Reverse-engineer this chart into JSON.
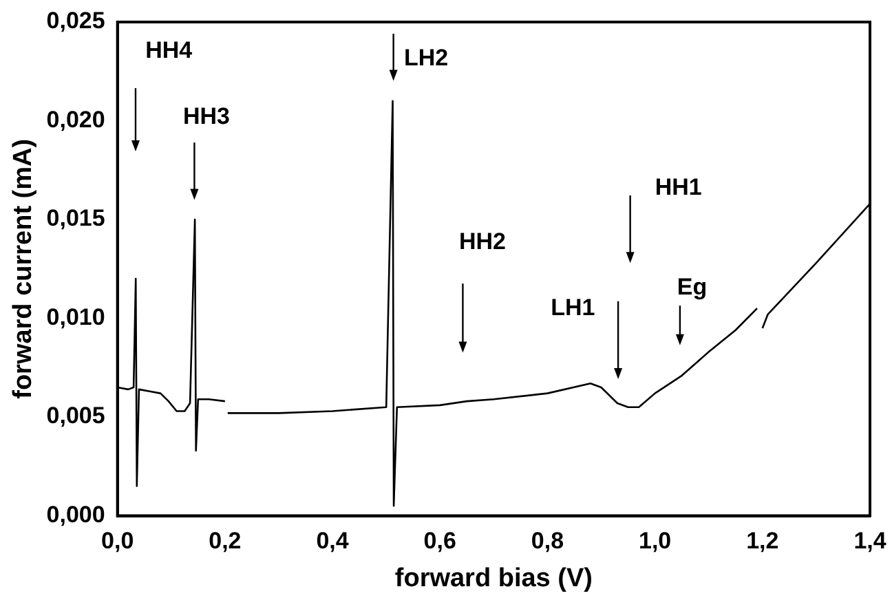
{
  "chart_data": {
    "type": "line",
    "xlabel": "forward bias (V)",
    "ylabel": "forward current (mA)",
    "series": [
      {
        "color": "#000000",
        "x": [
          0,
          0.02,
          0.03,
          0.034,
          0.036,
          0.04,
          0.06,
          0.08,
          0.095,
          0.11,
          0.125,
          0.135,
          0.144,
          0.146,
          0.15,
          0.17,
          0.2,
          0.201,
          0.205,
          0.3,
          0.4,
          0.5,
          0.512,
          0.514,
          0.52,
          0.6,
          0.65,
          0.7,
          0.8,
          0.88,
          0.9,
          0.93,
          0.95,
          0.97,
          1.0,
          1.05,
          1.1,
          1.15,
          1.19,
          1.195,
          1.2,
          1.21,
          1.3,
          1.4
        ],
        "values": [
          0.0065,
          0.0064,
          0.0065,
          0.012,
          0.0015,
          0.0064,
          0.0063,
          0.0062,
          0.0058,
          0.0053,
          0.0053,
          0.0057,
          0.015,
          0.0033,
          0.0059,
          0.0059,
          0.0058,
          null,
          0.0052,
          0.0052,
          0.0053,
          0.0055,
          0.021,
          0.0005,
          0.0055,
          0.0056,
          0.0058,
          0.0059,
          0.0062,
          0.0067,
          0.0065,
          0.0057,
          0.0055,
          0.0055,
          0.0062,
          0.0071,
          0.0083,
          0.0094,
          0.0105,
          null,
          0.0095,
          0.0102,
          0.0128,
          0.0158
        ]
      }
    ],
    "xlim": [
      0,
      1.4
    ],
    "xticks": [
      {
        "value": 0,
        "label": "0,0"
      },
      {
        "value": 0.2,
        "label": "0,2"
      },
      {
        "value": 0.4,
        "label": "0,4"
      },
      {
        "value": 0.6,
        "label": "0,6"
      },
      {
        "value": 0.8,
        "label": "0,8"
      },
      {
        "value": 1.0,
        "label": "1,0"
      },
      {
        "value": 1.2,
        "label": "1,2"
      },
      {
        "value": 1.4,
        "label": "1,4"
      }
    ],
    "ylim": [
      0,
      0.025
    ],
    "yticks": [
      {
        "value": 0,
        "label": "0,000"
      },
      {
        "value": 0.005,
        "label": "0,005"
      },
      {
        "value": 0.01,
        "label": "0,010"
      },
      {
        "value": 0.015,
        "label": "0,015"
      },
      {
        "value": 0.02,
        "label": "0,020"
      },
      {
        "value": 0.025,
        "label": "0,025"
      }
    ],
    "annotations": [
      "HH4",
      "HH3",
      "LH2",
      "HH2",
      "LH1",
      "HH1",
      "Eg"
    ],
    "grid": false,
    "legend": false,
    "marker": "none",
    "line_style": "solid"
  }
}
